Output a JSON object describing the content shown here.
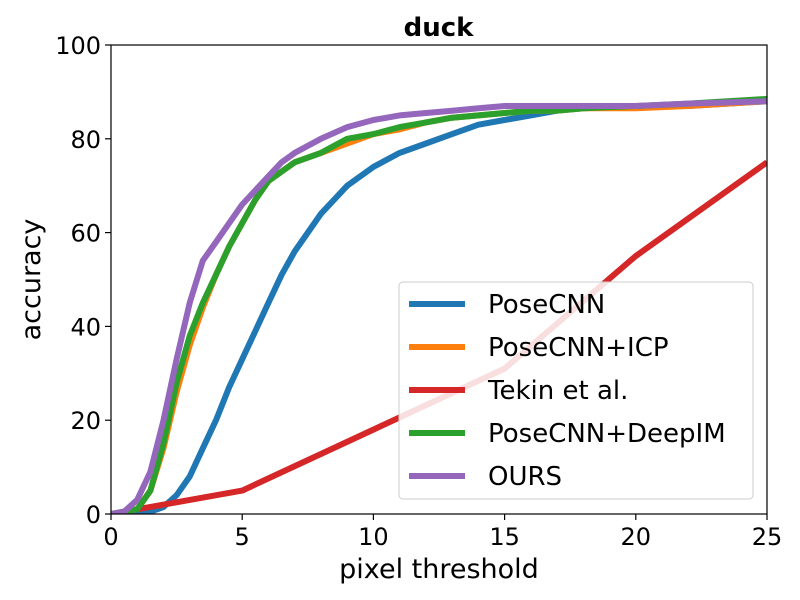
{
  "chart_data": {
    "type": "line",
    "title": "duck",
    "xlabel": "pixel threshold",
    "ylabel": "accuracy",
    "xlim": [
      0,
      25
    ],
    "ylim": [
      0,
      100
    ],
    "xticks": [
      0,
      5,
      10,
      15,
      20,
      25
    ],
    "yticks": [
      0,
      20,
      40,
      60,
      80,
      100
    ],
    "grid": false,
    "legend_position": "lower-right",
    "series": [
      {
        "name": "PoseCNN",
        "color": "#1f77b4",
        "x": [
          0,
          1,
          1.5,
          2,
          2.5,
          3,
          3.5,
          4,
          4.5,
          5,
          5.5,
          6,
          6.5,
          7,
          7.5,
          8,
          8.5,
          9,
          10,
          11,
          12,
          13,
          14,
          15,
          16,
          17,
          18,
          20,
          22,
          25
        ],
        "y": [
          0,
          0,
          0.5,
          1.5,
          4,
          8,
          14,
          20,
          27,
          33,
          39,
          45,
          51,
          56,
          60,
          64,
          67,
          70,
          74,
          77,
          79,
          81,
          83,
          84,
          85,
          86,
          86.5,
          87,
          87,
          88
        ]
      },
      {
        "name": "PoseCNN+ICP",
        "color": "#ff7f0e",
        "x": [
          0,
          1,
          1.5,
          2,
          2.5,
          3,
          3.5,
          4,
          4.5,
          5,
          5.5,
          6,
          6.5,
          7,
          8,
          9,
          10,
          11,
          12,
          13,
          14,
          15,
          16,
          17,
          18,
          20,
          22,
          25
        ],
        "y": [
          0,
          1,
          5,
          14,
          26,
          36,
          44,
          51,
          57,
          62,
          67,
          71,
          73,
          75,
          77,
          79,
          81,
          82,
          83.5,
          84.5,
          85,
          85.5,
          86,
          86,
          86.5,
          86.5,
          87,
          88
        ]
      },
      {
        "name": "Tekin et al.",
        "color": "#d62728",
        "x": [
          0,
          1,
          5,
          10,
          15,
          20,
          25
        ],
        "y": [
          0,
          1,
          5,
          18,
          31,
          55,
          75
        ]
      },
      {
        "name": "PoseCNN+DeepIM",
        "color": "#2ca02c",
        "x": [
          0,
          1,
          1.5,
          2,
          2.5,
          3,
          3.5,
          4,
          4.5,
          5,
          5.5,
          6,
          6.5,
          7,
          8,
          9,
          10,
          11,
          12,
          13,
          14,
          15,
          16,
          17,
          18,
          20,
          22,
          25
        ],
        "y": [
          0,
          1,
          5,
          15,
          28,
          38,
          45,
          51,
          57,
          62,
          67,
          71,
          73,
          75,
          77,
          80,
          81,
          82.5,
          83.5,
          84.5,
          85,
          85.5,
          86,
          86,
          86.5,
          87,
          87.5,
          88.5
        ]
      },
      {
        "name": "OURS",
        "color": "#9467bd",
        "x": [
          0,
          0.5,
          1,
          1.5,
          2,
          2.5,
          3,
          3.5,
          4,
          4.5,
          5,
          5.5,
          6,
          6.5,
          7,
          8,
          9,
          10,
          11,
          12,
          13,
          14,
          15,
          16,
          17,
          18,
          20,
          22,
          25
        ],
        "y": [
          0,
          0.5,
          3,
          9,
          20,
          33,
          45,
          54,
          58,
          62,
          66,
          69,
          72,
          75,
          77,
          80,
          82.5,
          84,
          85,
          85.5,
          86,
          86.5,
          87,
          87,
          87,
          87,
          87,
          87.5,
          88
        ]
      }
    ]
  }
}
